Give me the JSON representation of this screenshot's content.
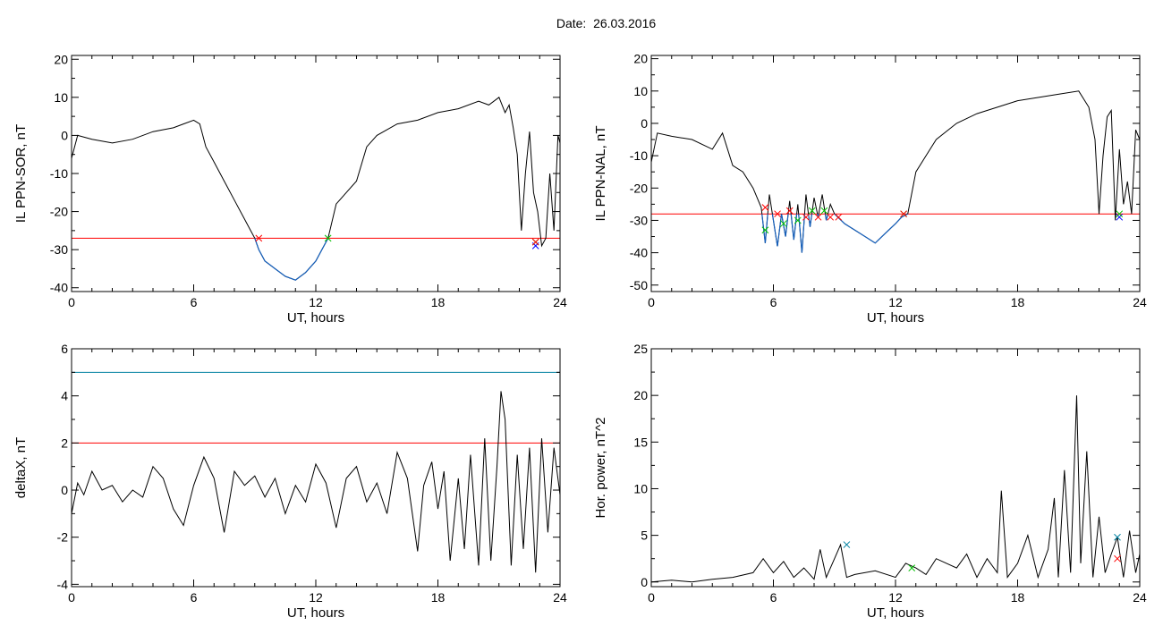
{
  "date_title": "Date:  26.03.2016",
  "colors": {
    "trace": "#000000",
    "below": "#1560bd",
    "red": "#ff0000",
    "green": "#00c000",
    "blue": "#0000ff",
    "cyan": "#0080a0"
  },
  "chart_data": [
    {
      "type": "line",
      "ylabel": "IL PPN-SOR, nT",
      "xlabel": "UT, hours",
      "xlim": [
        0,
        24
      ],
      "ylim": [
        -41,
        21
      ],
      "xticks": [
        0,
        6,
        12,
        18,
        24
      ],
      "yticks": [
        -40,
        -30,
        -20,
        -10,
        0,
        10,
        20
      ],
      "threshold": -27,
      "x": [
        0,
        0.3,
        1,
        2,
        3,
        4,
        5,
        5.5,
        6,
        6.3,
        6.6,
        7,
        7.5,
        8,
        8.5,
        8.8,
        9,
        9.2,
        9.5,
        10,
        10.5,
        11,
        11.5,
        12,
        12.3,
        12.6,
        13,
        13.5,
        14,
        14.5,
        15,
        16,
        17,
        18,
        19,
        20,
        20.5,
        21,
        21.3,
        21.5,
        21.7,
        21.9,
        22.1,
        22.3,
        22.5,
        22.7,
        22.9,
        23.1,
        23.3,
        23.5,
        23.7,
        23.9,
        24
      ],
      "y": [
        -6,
        0,
        -1,
        -2,
        -1,
        1,
        2,
        3,
        4,
        3,
        -3,
        -7,
        -12,
        -17,
        -22,
        -25,
        -27,
        -30,
        -33,
        -35,
        -37,
        -38,
        -36,
        -33,
        -30,
        -27,
        -18,
        -15,
        -12,
        -3,
        0,
        3,
        4,
        6,
        7,
        9,
        8,
        10,
        6,
        8,
        2,
        -5,
        -25,
        -10,
        1,
        -15,
        -20,
        -29,
        -27,
        -10,
        -25,
        0,
        -2
      ],
      "markers": [
        {
          "x": 9.2,
          "y": -27,
          "color": "#ff0000"
        },
        {
          "x": 12.6,
          "y": -27,
          "color": "#00c000"
        },
        {
          "x": 22.8,
          "y": -29,
          "color": "#0000ff"
        },
        {
          "x": 22.8,
          "y": -28,
          "color": "#00c000"
        },
        {
          "x": 22.8,
          "y": -28,
          "color": "#ff0000"
        }
      ]
    },
    {
      "type": "line",
      "ylabel": "IL PPN-NAL, nT",
      "xlabel": "UT, hours",
      "xlim": [
        0,
        24
      ],
      "ylim": [
        -52,
        21
      ],
      "xticks": [
        0,
        6,
        12,
        18,
        24
      ],
      "yticks": [
        -50,
        -40,
        -30,
        -20,
        -10,
        0,
        10,
        20
      ],
      "threshold": -28,
      "x": [
        0,
        0.3,
        1,
        2,
        3,
        3.5,
        4,
        4.5,
        5,
        5.4,
        5.6,
        5.8,
        6,
        6.2,
        6.4,
        6.6,
        6.8,
        7,
        7.2,
        7.4,
        7.6,
        7.8,
        8,
        8.2,
        8.4,
        8.6,
        8.8,
        9,
        9.5,
        10,
        10.5,
        11,
        11.5,
        12,
        12.3,
        12.6,
        13,
        13.5,
        14,
        15,
        16,
        17,
        18,
        19,
        20,
        21,
        21.5,
        21.8,
        22,
        22.2,
        22.4,
        22.6,
        22.8,
        23,
        23.2,
        23.4,
        23.6,
        23.8,
        24
      ],
      "y": [
        -12,
        -3,
        -4,
        -5,
        -8,
        -3,
        -13,
        -15,
        -20,
        -26,
        -37,
        -22,
        -30,
        -38,
        -28,
        -35,
        -24,
        -36,
        -25,
        -40,
        -22,
        -32,
        -23,
        -29,
        -22,
        -30,
        -25,
        -28,
        -31,
        -33,
        -35,
        -37,
        -34,
        -31,
        -29,
        -28,
        -15,
        -10,
        -5,
        0,
        3,
        5,
        7,
        8,
        9,
        10,
        5,
        -5,
        -28,
        -10,
        2,
        4,
        -30,
        -8,
        -25,
        -18,
        -28,
        -2,
        -5
      ],
      "markers": [
        {
          "x": 5.6,
          "y": -33,
          "color": "#00c000"
        },
        {
          "x": 5.6,
          "y": -26,
          "color": "#ff0000"
        },
        {
          "x": 6.2,
          "y": -28,
          "color": "#ff0000"
        },
        {
          "x": 6.5,
          "y": -31,
          "color": "#00c000"
        },
        {
          "x": 6.8,
          "y": -27,
          "color": "#ff0000"
        },
        {
          "x": 7.2,
          "y": -30,
          "color": "#00c000"
        },
        {
          "x": 7.6,
          "y": -29,
          "color": "#ff0000"
        },
        {
          "x": 7.9,
          "y": -27,
          "color": "#00c000"
        },
        {
          "x": 8.2,
          "y": -29,
          "color": "#ff0000"
        },
        {
          "x": 8.5,
          "y": -27,
          "color": "#00c000"
        },
        {
          "x": 8.8,
          "y": -29,
          "color": "#ff0000"
        },
        {
          "x": 9.2,
          "y": -29,
          "color": "#ff0000"
        },
        {
          "x": 12.4,
          "y": -28,
          "color": "#00c000"
        },
        {
          "x": 12.4,
          "y": -28,
          "color": "#ff0000"
        },
        {
          "x": 23.0,
          "y": -29,
          "color": "#0000ff"
        },
        {
          "x": 23.0,
          "y": -28,
          "color": "#00c000"
        }
      ]
    },
    {
      "type": "line",
      "ylabel": "deltaX, nT",
      "xlabel": "UT, hours",
      "xlim": [
        0,
        24
      ],
      "ylim": [
        -4.1,
        6
      ],
      "xticks": [
        0,
        6,
        12,
        18,
        24
      ],
      "yticks": [
        -4,
        -2,
        0,
        2,
        4,
        6
      ],
      "hlines": [
        {
          "y": 5,
          "color": "#0080a0"
        },
        {
          "y": 2,
          "color": "#ff0000"
        }
      ],
      "x": [
        0,
        0.3,
        0.6,
        1,
        1.5,
        2,
        2.5,
        3,
        3.5,
        4,
        4.5,
        5,
        5.5,
        6,
        6.5,
        7,
        7.5,
        8,
        8.5,
        9,
        9.5,
        10,
        10.5,
        11,
        11.5,
        12,
        12.5,
        13,
        13.5,
        14,
        14.5,
        15,
        15.5,
        16,
        16.5,
        17,
        17.3,
        17.7,
        18,
        18.3,
        18.6,
        19,
        19.3,
        19.6,
        20,
        20.3,
        20.6,
        20.9,
        21.1,
        21.3,
        21.6,
        21.9,
        22.2,
        22.5,
        22.8,
        23.1,
        23.4,
        23.7,
        24
      ],
      "y": [
        -1,
        0.3,
        -0.2,
        0.8,
        0,
        0.2,
        -0.5,
        0,
        -0.3,
        1,
        0.5,
        -0.8,
        -1.5,
        0.2,
        1.4,
        0.5,
        -1.8,
        0.8,
        0.2,
        0.6,
        -0.3,
        0.5,
        -1,
        0.2,
        -0.5,
        1.1,
        0.3,
        -1.6,
        0.5,
        1,
        -0.5,
        0.3,
        -1,
        1.6,
        0.5,
        -2.6,
        0.2,
        1.2,
        -0.8,
        0.8,
        -3,
        0.5,
        -2.5,
        1.5,
        -3.2,
        2.2,
        -3,
        1,
        4.2,
        3,
        -3.2,
        1.5,
        -2.5,
        1.8,
        -3.5,
        2.2,
        -1.8,
        1.8,
        -0.2
      ],
      "markers": []
    },
    {
      "type": "line",
      "ylabel": "Hor. power, nT^2",
      "xlabel": "UT, hours",
      "xlim": [
        0,
        24
      ],
      "ylim": [
        -0.5,
        25
      ],
      "xticks": [
        0,
        6,
        12,
        18,
        24
      ],
      "yticks": [
        0,
        5,
        10,
        15,
        20,
        25
      ],
      "hlines": [
        {
          "y": 25,
          "color": "#ff0000"
        }
      ],
      "x": [
        0,
        1,
        2,
        3,
        4,
        5,
        5.5,
        6,
        6.5,
        7,
        7.5,
        8,
        8.3,
        8.6,
        9,
        9.3,
        9.6,
        10,
        11,
        12,
        12.5,
        13,
        13.5,
        14,
        15,
        15.5,
        16,
        16.5,
        17,
        17.2,
        17.5,
        18,
        18.5,
        19,
        19.5,
        19.8,
        20,
        20.3,
        20.6,
        20.9,
        21.1,
        21.4,
        21.7,
        22,
        22.3,
        22.6,
        22.9,
        23.2,
        23.5,
        23.8,
        24
      ],
      "y": [
        0,
        0.2,
        0,
        0.3,
        0.5,
        1,
        2.5,
        1,
        2.2,
        0.5,
        1.5,
        0.3,
        3.5,
        0.5,
        2.5,
        4,
        0.5,
        0.8,
        1.2,
        0.5,
        2,
        1.5,
        0.8,
        2.5,
        1.5,
        3,
        0.5,
        2.5,
        1,
        9.8,
        0.5,
        2,
        5,
        0.5,
        3.5,
        9,
        0.5,
        12,
        1,
        20,
        2,
        14,
        0.5,
        7,
        1,
        3,
        4.8,
        0.5,
        5.5,
        1,
        3
      ],
      "markers": [
        {
          "x": 9.6,
          "y": 4,
          "color": "#0080a0"
        },
        {
          "x": 12.8,
          "y": 1.5,
          "color": "#00c000"
        },
        {
          "x": 22.9,
          "y": 4.8,
          "color": "#0080a0"
        },
        {
          "x": 22.9,
          "y": 2.5,
          "color": "#ff0000"
        }
      ]
    }
  ]
}
